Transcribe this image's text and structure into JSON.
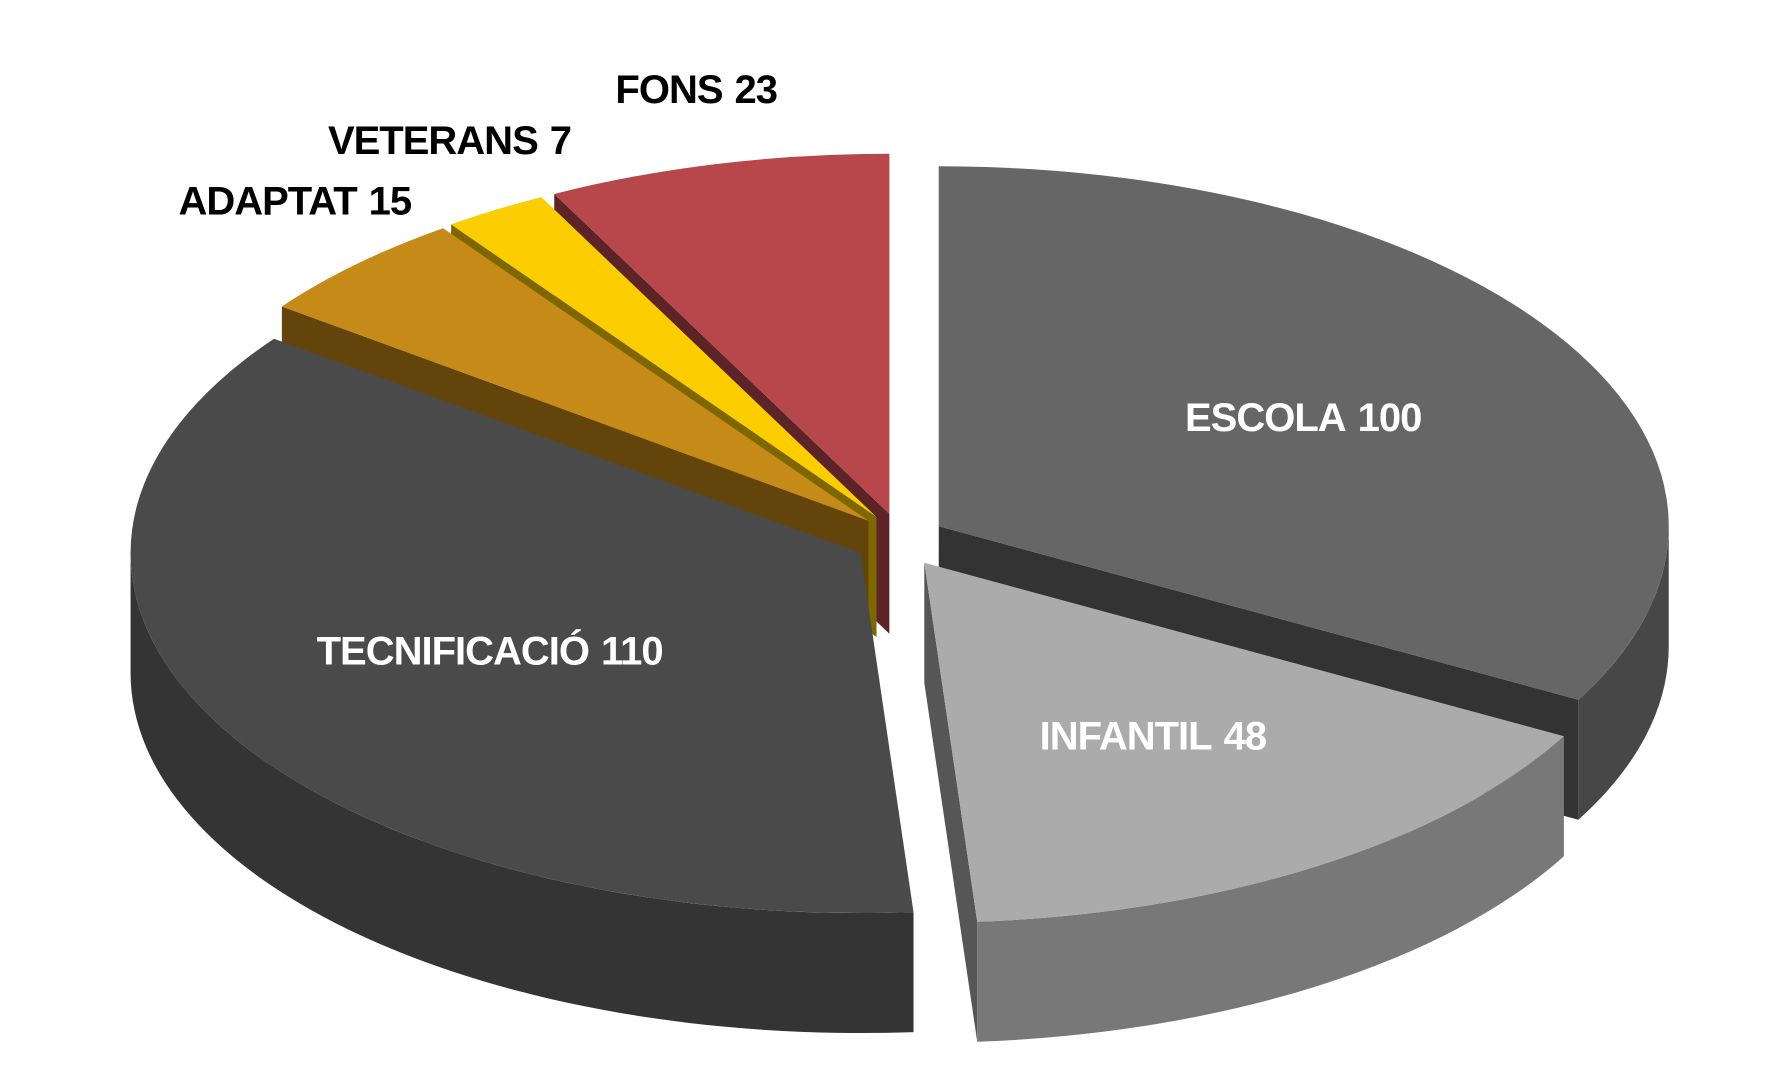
{
  "chart_data": {
    "type": "pie",
    "categories": [
      "ESCOLA",
      "INFANTIL",
      "TECNIFICACIÓ",
      "ADAPTAT",
      "VETERANS",
      "FONS"
    ],
    "values": [
      100,
      48,
      110,
      15,
      7,
      23
    ],
    "colors": [
      "#666666",
      "#ababab",
      "#4a4a4a",
      "#c68a18",
      "#fccd00",
      "#b8474c"
    ]
  }
}
